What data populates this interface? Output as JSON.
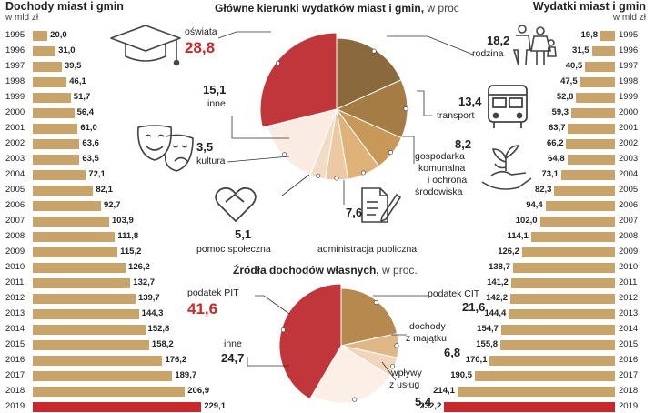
{
  "chart_data": [
    {
      "type": "bar",
      "title": "Dochody miast i gmin",
      "subtitle": "w mld zł",
      "orientation": "horizontal",
      "categories": [
        "1995",
        "1996",
        "1997",
        "1998",
        "1999",
        "2000",
        "2001",
        "2002",
        "2003",
        "2004",
        "2005",
        "2006",
        "2007",
        "2008",
        "2009",
        "2010",
        "2011",
        "2012",
        "2013",
        "2014",
        "2015",
        "2016",
        "2017",
        "2018",
        "2019"
      ],
      "value_labels": [
        "20,0",
        "31,0",
        "39,5",
        "46,1",
        "51,7",
        "56,4",
        "61,0",
        "63,6",
        "63,5",
        "72,1",
        "82,1",
        "92,7",
        "103,9",
        "111,8",
        "115,2",
        "126,2",
        "132,7",
        "139,7",
        "144,3",
        "152,8",
        "158,2",
        "176,2",
        "189,7",
        "206,9",
        "229,1"
      ],
      "values": [
        20.0,
        31.0,
        39.5,
        46.1,
        51.7,
        56.4,
        61.0,
        63.6,
        63.5,
        72.1,
        82.1,
        92.7,
        103.9,
        111.8,
        115.2,
        126.2,
        132.7,
        139.7,
        144.3,
        152.8,
        158.2,
        176.2,
        189.7,
        206.9,
        229.1
      ],
      "bar_color": "#c9a46a",
      "highlight_color": "#c8282c"
    },
    {
      "type": "bar",
      "title": "Wydatki miast i gmin",
      "subtitle": "w mld zł",
      "orientation": "horizontal",
      "categories": [
        "1995",
        "1996",
        "1997",
        "1998",
        "1999",
        "2000",
        "2001",
        "2002",
        "2003",
        "2004",
        "2005",
        "2006",
        "2007",
        "2008",
        "2009",
        "2010",
        "2011",
        "2012",
        "2013",
        "2014",
        "2015",
        "2016",
        "2017",
        "2018",
        "2019"
      ],
      "value_labels": [
        "19,8",
        "31,5",
        "40,5",
        "47,5",
        "52,8",
        "59,3",
        "63,7",
        "66,2",
        "64,8",
        "73,1",
        "82,3",
        "94,4",
        "102,0",
        "114,1",
        "126,2",
        "138,7",
        "141,2",
        "142,2",
        "144,4",
        "154,7",
        "155,8",
        "170,1",
        "190,5",
        "214,1",
        "232,2"
      ],
      "values": [
        19.8,
        31.5,
        40.5,
        47.5,
        52.8,
        59.3,
        63.7,
        66.2,
        64.8,
        73.1,
        82.3,
        94.4,
        102.0,
        114.1,
        126.2,
        138.7,
        141.2,
        142.2,
        144.4,
        154.7,
        155.8,
        170.1,
        190.5,
        214.1,
        232.2
      ],
      "bar_color": "#c9a46a",
      "highlight_color": "#c8282c"
    },
    {
      "type": "pie",
      "title": "Główne kierunki wydatków miast i gmin,",
      "title_unit": "w proc",
      "slices": [
        {
          "label": "rodzina",
          "value": 18.2,
          "value_label": "18,2",
          "color": "#8a6a3c"
        },
        {
          "label": "transport",
          "value": 13.4,
          "value_label": "13,4",
          "color": "#a67c45"
        },
        {
          "label": "gospodarka komunalna i ochrona środowiska",
          "lines": [
            "gospodarka",
            "komunalna",
            "i ochrona",
            "środowiska"
          ],
          "value": 8.2,
          "value_label": "8,2",
          "color": "#c89858"
        },
        {
          "label": "administracja publiczna",
          "value": 7.6,
          "value_label": "7,6",
          "color": "#dfb27a"
        },
        {
          "label": "pomoc społeczna",
          "value": 5.1,
          "value_label": "5,1",
          "color": "#ecc9a2"
        },
        {
          "label": "kultura",
          "value": 3.5,
          "value_label": "3,5",
          "color": "#f3dcc6"
        },
        {
          "label": "inne",
          "value": 15.1,
          "value_label": "15,1",
          "color": "#faece2"
        },
        {
          "label": "oświata",
          "value": 28.8,
          "value_label": "28,8",
          "color": "#c0363a",
          "highlight": true
        }
      ]
    },
    {
      "type": "pie",
      "title": "Źródła dochodów własnych,",
      "title_unit": "w proc.",
      "slices": [
        {
          "label": "podatek CIT",
          "value": 21.6,
          "value_label": "21,6",
          "color": "#b68a4f"
        },
        {
          "label": "dochody z majątku",
          "lines": [
            "dochody",
            "z majątku"
          ],
          "value": 6.8,
          "value_label": "6,8",
          "color": "#e0b888"
        },
        {
          "label": "wpływy z usług",
          "lines": [
            "wpływy",
            "z usług"
          ],
          "value": 5.4,
          "value_label": "5,4",
          "color": "#f0d6bc"
        },
        {
          "label": "inne",
          "value": 24.7,
          "value_label": "24,7",
          "color": "#fbefe6"
        },
        {
          "label": "podatek PIT",
          "value": 41.6,
          "value_label": "41,6",
          "color": "#c0363a",
          "highlight": true
        }
      ]
    }
  ],
  "icons": {
    "oswiata": "graduation-cap-icon",
    "rodzina": "family-icon",
    "transport": "bus-icon",
    "gospodarka": "plant-in-hand-icon",
    "administracja": "document-pen-icon",
    "pomoc": "heart-hands-icon",
    "kultura": "theatre-masks-icon"
  }
}
